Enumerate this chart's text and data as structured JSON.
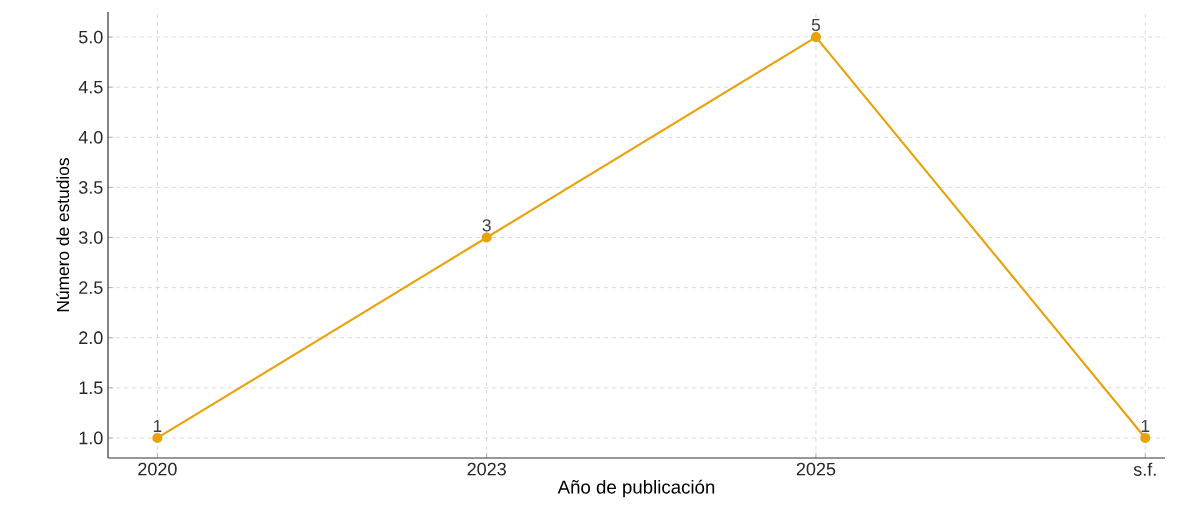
{
  "chart_data": {
    "type": "line",
    "xlabel": "Año de publicación",
    "ylabel": "Número de estudios",
    "categories": [
      "2020",
      "2023",
      "2025",
      "s.f."
    ],
    "values": [
      1,
      3,
      5,
      1
    ],
    "value_labels": [
      "1",
      "3",
      "5",
      "1"
    ],
    "color": "#e8a20c",
    "ylim": [
      0.8,
      5.25
    ],
    "yticks": [
      {
        "value": 1.0,
        "label": "1.0"
      },
      {
        "value": 1.5,
        "label": "1.5"
      },
      {
        "value": 2.0,
        "label": "2.0"
      },
      {
        "value": 2.5,
        "label": "2.5"
      },
      {
        "value": 3.0,
        "label": "3.0"
      },
      {
        "value": 3.5,
        "label": "3.5"
      },
      {
        "value": 4.0,
        "label": "4.0"
      },
      {
        "value": 4.5,
        "label": "4.5"
      },
      {
        "value": 5.0,
        "label": "5.0"
      }
    ],
    "grid": true,
    "marker": "circle",
    "line_style": "solid"
  }
}
